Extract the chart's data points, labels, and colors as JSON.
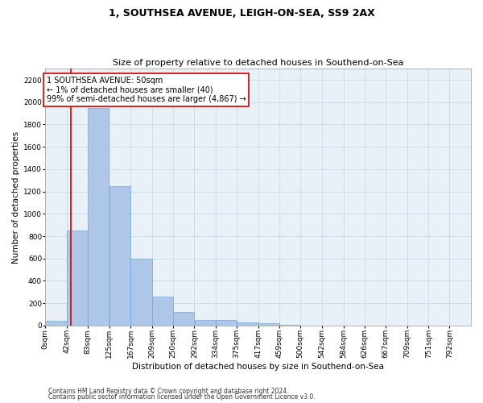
{
  "title1": "1, SOUTHSEA AVENUE, LEIGH-ON-SEA, SS9 2AX",
  "title2": "Size of property relative to detached houses in Southend-on-Sea",
  "xlabel": "Distribution of detached houses by size in Southend-on-Sea",
  "ylabel": "Number of detached properties",
  "footer1": "Contains HM Land Registry data © Crown copyright and database right 2024.",
  "footer2": "Contains public sector information licensed under the Open Government Licence v3.0.",
  "annotation_title": "1 SOUTHSEA AVENUE: 50sqm",
  "annotation_line2": "← 1% of detached houses are smaller (40)",
  "annotation_line3": "99% of semi-detached houses are larger (4,867) →",
  "property_size_sqm": 50,
  "bar_bins": [
    0,
    42,
    83,
    125,
    167,
    209,
    250,
    292,
    334,
    375,
    417,
    459,
    500,
    542,
    584,
    626,
    667,
    709,
    751,
    792,
    834
  ],
  "bar_heights": [
    40,
    850,
    1950,
    1250,
    600,
    260,
    120,
    50,
    50,
    30,
    20,
    5,
    2,
    1,
    1,
    0,
    0,
    0,
    0,
    0
  ],
  "bar_color": "#aec6e8",
  "bar_edge_color": "#5a9fd4",
  "vline_color": "#cc0000",
  "vline_x": 50,
  "annotation_box_color": "#cc0000",
  "annotation_text_color": "#000000",
  "ylim": [
    0,
    2300
  ],
  "yticks": [
    0,
    200,
    400,
    600,
    800,
    1000,
    1200,
    1400,
    1600,
    1800,
    2000,
    2200
  ],
  "grid_color": "#c8d8e8",
  "background_color": "#e8f0f8",
  "title1_fontsize": 9,
  "title2_fontsize": 8,
  "xlabel_fontsize": 7.5,
  "ylabel_fontsize": 7.5,
  "tick_fontsize": 6.5,
  "annotation_fontsize": 7,
  "footer_fontsize": 5.5
}
